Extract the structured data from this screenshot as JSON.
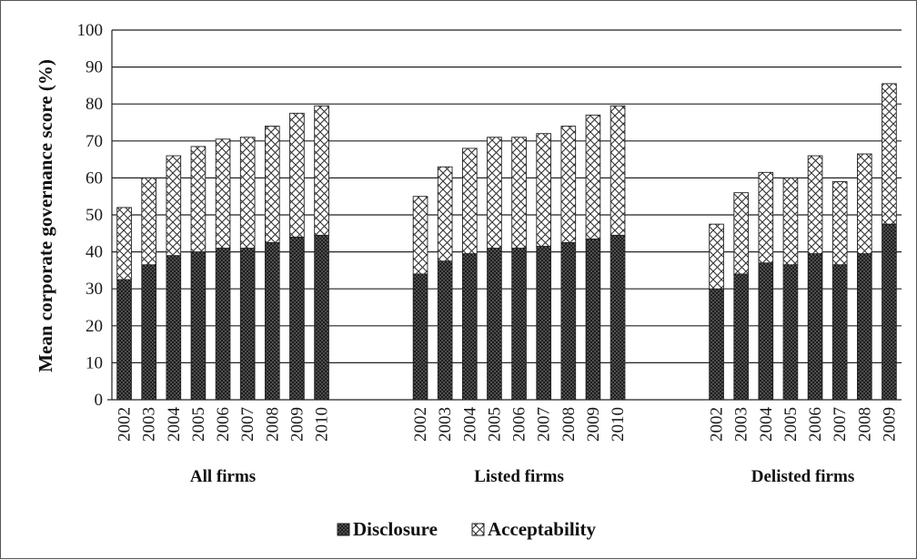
{
  "chart_data": {
    "type": "bar",
    "stacked": true,
    "title": "",
    "ylabel": "Mean  corporate governance score (%)",
    "xlabel": "",
    "ylim": [
      0,
      100
    ],
    "yticks": [
      0,
      10,
      20,
      30,
      40,
      50,
      60,
      70,
      80,
      90,
      100
    ],
    "grid": true,
    "legend_position": "bottom",
    "groups": [
      {
        "label": "All firms",
        "categories": [
          "2002",
          "2003",
          "2004",
          "2005",
          "2006",
          "2007",
          "2008",
          "2009",
          "2010"
        ],
        "series": [
          {
            "name": "Disclosure",
            "values": [
              32.5,
              36.5,
              39,
              40,
              41,
              41,
              42.5,
              44,
              44.5
            ]
          },
          {
            "name": "Acceptability",
            "values": [
              19.5,
              23.5,
              27,
              28.5,
              29.5,
              30,
              31.5,
              33.5,
              35
            ]
          }
        ]
      },
      {
        "label": "Listed firms",
        "categories": [
          "2002",
          "2003",
          "2004",
          "2005",
          "2006",
          "2007",
          "2008",
          "2009",
          "2010"
        ],
        "series": [
          {
            "name": "Disclosure",
            "values": [
              34,
              37.5,
              39.5,
              41,
              41,
              41.5,
              42.5,
              43.5,
              44.5
            ]
          },
          {
            "name": "Acceptability",
            "values": [
              21,
              25.5,
              28.5,
              30,
              30,
              30.5,
              31.5,
              33.5,
              35
            ]
          }
        ]
      },
      {
        "label": "Delisted firms",
        "categories": [
          "2002",
          "2003",
          "2004",
          "2005",
          "2006",
          "2007",
          "2008",
          "2009"
        ],
        "series": [
          {
            "name": "Disclosure",
            "values": [
              30,
              34,
              37,
              36.5,
              39.5,
              36.5,
              39.5,
              47.5
            ]
          },
          {
            "name": "Acceptability",
            "values": [
              17.5,
              22,
              24.5,
              23.5,
              26.5,
              22.5,
              27,
              38
            ]
          }
        ]
      }
    ],
    "legend": [
      {
        "name": "Disclosure",
        "fill": "#222222",
        "pattern": "dense dots"
      },
      {
        "name": "Acceptability",
        "fill": "#ffffff",
        "pattern": "crosshatch"
      }
    ]
  }
}
